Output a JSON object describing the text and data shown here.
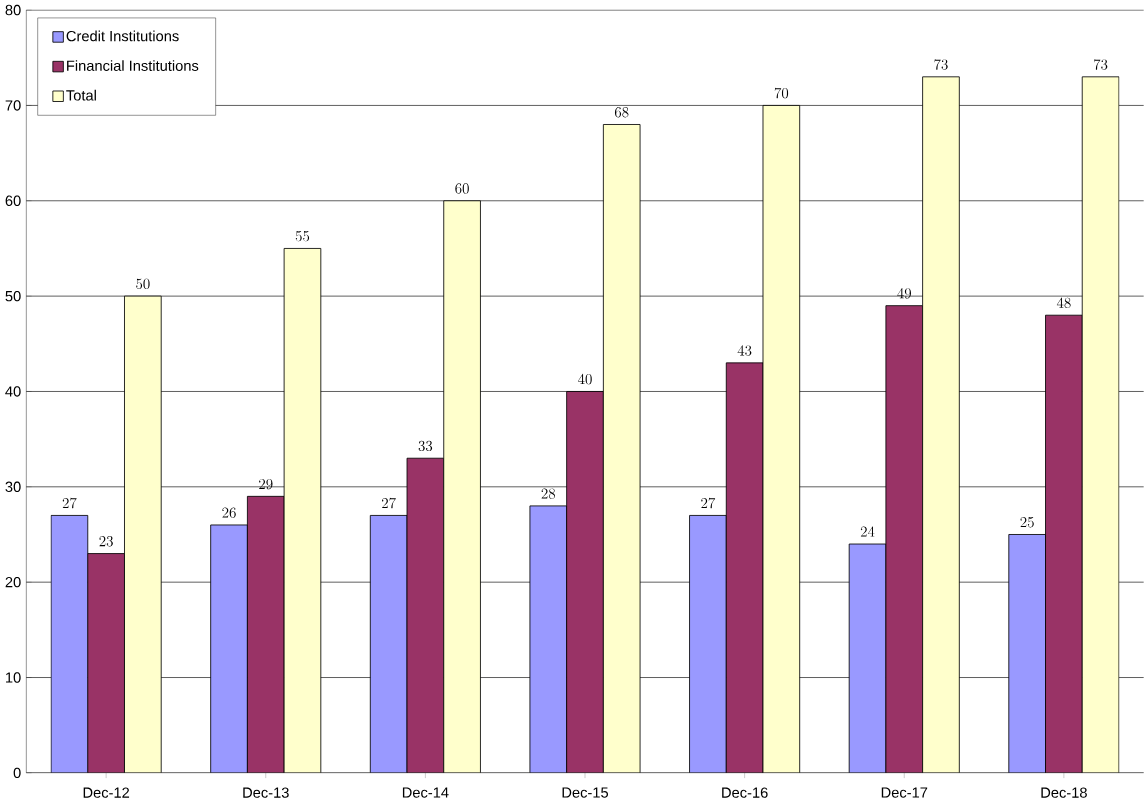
{
  "chart_data": {
    "type": "bar",
    "categories": [
      "Dec-12",
      "Dec-13",
      "Dec-14",
      "Dec-15",
      "Dec-16",
      "Dec-17",
      "Dec-18"
    ],
    "series": [
      {
        "name": "Credit Institutions",
        "color": "#9999ff",
        "values": [
          27,
          26,
          27,
          28,
          27,
          24,
          25
        ]
      },
      {
        "name": "Financial Institutions",
        "color": "#993366",
        "values": [
          23,
          29,
          33,
          40,
          43,
          49,
          48
        ]
      },
      {
        "name": "Total",
        "color": "#ffffcc",
        "values": [
          50,
          55,
          60,
          68,
          70,
          73,
          73
        ]
      }
    ],
    "ylim": [
      0,
      80
    ],
    "yticks": [
      0,
      10,
      20,
      30,
      40,
      50,
      60,
      70,
      80
    ],
    "grid": "y",
    "legend": "top left",
    "data_labels": true
  }
}
